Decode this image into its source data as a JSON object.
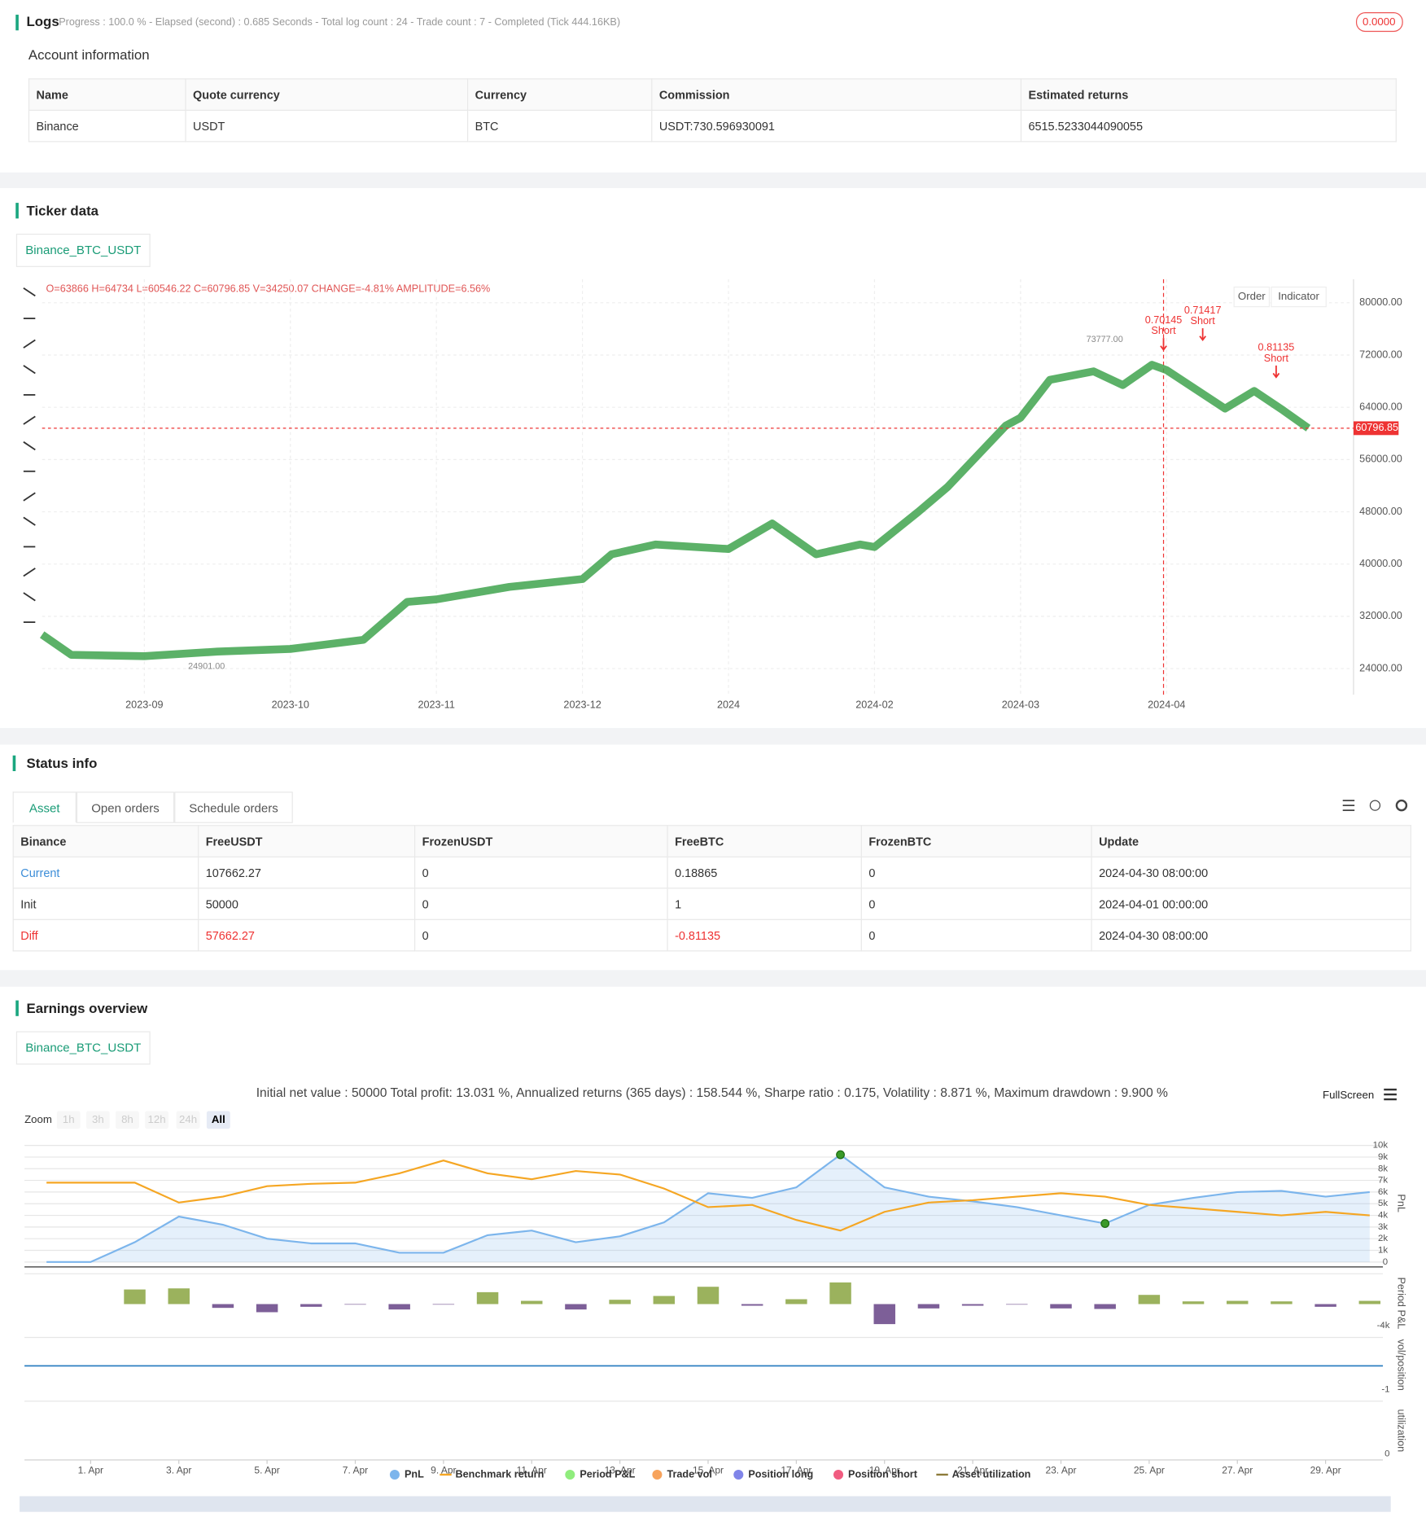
{
  "logs": {
    "title": "Logs",
    "summary": "Progress : 100.0 % - Elapsed (second) : 0.685  Seconds - Total log count : 24 - Trade count : 7 - Completed (Tick 444.16KB)",
    "badge": "0.0000"
  },
  "account": {
    "title": "Account information",
    "columns": [
      "Name",
      "Quote currency",
      "Currency",
      "Commission",
      "Estimated returns"
    ],
    "rows": [
      [
        "Binance",
        "USDT",
        "BTC",
        "USDT:730.596930091",
        "6515.5233044090055"
      ]
    ]
  },
  "ticker": {
    "title": "Ticker data",
    "tab": "Binance_BTC_USDT",
    "ohlc": "O=63866 H=64734 L=60546.22 C=60796.85 V=34250.07 CHANGE=-4.81% AMPLITUDE=6.56%",
    "buttons": [
      "Order",
      "Indicator"
    ]
  },
  "status": {
    "title": "Status info",
    "tabs": [
      "Asset",
      "Open orders",
      "Schedule orders"
    ],
    "columns": [
      "Binance",
      "FreeUSDT",
      "FrozenUSDT",
      "FreeBTC",
      "FrozenBTC",
      "Update"
    ],
    "rows": [
      [
        "Current",
        "107662.27",
        "0",
        "0.18865",
        "0",
        "2024-04-30 08:00:00"
      ],
      [
        "Init",
        "50000",
        "0",
        "1",
        "0",
        "2024-04-01 00:00:00"
      ],
      [
        "Diff",
        "57662.27",
        "0",
        "-0.81135",
        "0",
        "2024-04-30 08:00:00"
      ]
    ]
  },
  "earnings": {
    "title": "Earnings overview",
    "tab": "Binance_BTC_USDT",
    "summary": "Initial net value : 50000 Total profit: 13.031 %, Annualized returns (365 days) : 158.544 %, Sharpe ratio : 0.175, Volatility : 8.871 %, Maximum drawdown : 9.900 %",
    "fullscreen": "FullScreen",
    "zoom_label": "Zoom",
    "zoom_buttons": [
      "1h",
      "3h",
      "8h",
      "12h",
      "24h",
      "All"
    ],
    "panel_titles": [
      "PnL",
      "Period P&L",
      "vol/position",
      "utilization"
    ],
    "panel_ticks": [
      "-1",
      "0"
    ],
    "legend": [
      {
        "name": "PnL",
        "color": "#7cb5ec",
        "shape": "dot"
      },
      {
        "name": "Benchmark return",
        "color": "#f5a623",
        "shape": "line"
      },
      {
        "name": "Period P&L",
        "color": "#90ed7d",
        "shape": "dot"
      },
      {
        "name": "Trade vol",
        "color": "#f7a35c",
        "shape": "dot"
      },
      {
        "name": "Position long",
        "color": "#8085e9",
        "shape": "dot"
      },
      {
        "name": "Position short",
        "color": "#f15c80",
        "shape": "dot"
      },
      {
        "name": "Asset utilization",
        "color": "#8d7b3a",
        "shape": "line"
      }
    ]
  },
  "chart_data": [
    {
      "type": "line",
      "x": [
        -0.7,
        -0.5,
        0,
        0.5,
        1,
        1.5,
        1.8,
        2,
        2.5,
        3,
        3.2,
        3.5,
        4,
        4.3,
        4.6,
        4.9,
        5,
        5.3,
        5.5,
        5.9,
        6,
        6.2,
        6.5,
        6.7,
        6.9,
        7,
        7.4,
        7.6,
        7.8,
        7.97
      ],
      "series": [
        {
          "color": "#3fa34d",
          "values": [
            29200,
            26100,
            25900,
            26600,
            27000,
            28400,
            34200,
            34600,
            36500,
            37700,
            41500,
            43000,
            42300,
            46200,
            41500,
            43000,
            42600,
            48000,
            51800,
            61200,
            62400,
            68200,
            69500,
            67400,
            70500,
            69700,
            63800,
            66500,
            63500,
            60796.85
          ]
        }
      ],
      "xlim": [
        -0.7,
        8.28
      ],
      "ylim": [
        20000,
        83600
      ],
      "xticks": [
        {
          "value": 0,
          "label": "2023-09"
        },
        {
          "value": 1,
          "label": "2023-10"
        },
        {
          "value": 2,
          "label": "2023-11"
        },
        {
          "value": 3,
          "label": "2023-12"
        },
        {
          "value": 4,
          "label": "2024"
        },
        {
          "value": 5,
          "label": "2024-02"
        },
        {
          "value": 6,
          "label": "2024-03"
        },
        {
          "value": 7,
          "label": "2024-04"
        }
      ],
      "yticks": [
        {
          "value": 24000,
          "label": "24000.00"
        },
        {
          "value": 32000,
          "label": "32000.00"
        },
        {
          "value": 40000,
          "label": "40000.00"
        },
        {
          "value": 48000,
          "label": "48000.00"
        },
        {
          "value": 56000,
          "label": "56000.00"
        },
        {
          "value": 64000,
          "label": "64000.00"
        },
        {
          "value": 72000,
          "label": "72000.00"
        },
        {
          "value": 80000,
          "label": "80000.00"
        }
      ],
      "grid": true,
      "last_price": {
        "value": 60796.85,
        "label": "60796.85"
      },
      "max": {
        "x": 6.45,
        "value": 73777,
        "label": "73777.00"
      },
      "min": {
        "x": 0.3,
        "value": 24901,
        "label": "24901.00"
      },
      "trade_labels": [
        {
          "amount": "0.70145",
          "side": "Short"
        },
        {
          "amount": "0.71417",
          "side": "Short"
        },
        {
          "amount": "0.81135",
          "side": "Short"
        }
      ]
    },
    {
      "type": "line",
      "x": [
        0,
        1,
        2,
        3,
        4,
        5,
        6,
        7,
        8,
        9,
        10,
        11,
        12,
        13,
        14,
        15,
        16,
        17,
        18,
        19,
        20,
        21,
        22,
        23,
        24,
        25,
        26,
        27,
        28,
        29,
        30
      ],
      "series": [
        {
          "color": "#7cb5ec",
          "area": true,
          "values": [
            0,
            0,
            1700,
            3900,
            3200,
            2000,
            1600,
            1600,
            800,
            800,
            2300,
            2700,
            1700,
            2200,
            3400,
            5900,
            5500,
            6400,
            9200,
            6400,
            5600,
            5200,
            4700,
            4000,
            3300,
            4900,
            5500,
            6000,
            6100,
            5600,
            6000
          ]
        },
        {
          "color": "#f5a623",
          "values": [
            6800,
            6800,
            6800,
            5100,
            5600,
            6500,
            6700,
            6800,
            7600,
            8700,
            7600,
            7100,
            7800,
            7500,
            6300,
            4700,
            4900,
            3600,
            2700,
            4300,
            5100,
            5300,
            5600,
            5900,
            5600,
            4900,
            4600,
            4300,
            4000,
            4300,
            4000
          ]
        }
      ],
      "xlim": [
        -0.5,
        30.3
      ],
      "ylim": [
        -420,
        10500
      ],
      "xticks": [
        {
          "value": 1,
          "label": "1. Apr"
        },
        {
          "value": 3,
          "label": "3. Apr"
        },
        {
          "value": 5,
          "label": "5. Apr"
        },
        {
          "value": 7,
          "label": "7. Apr"
        },
        {
          "value": 9,
          "label": "9. Apr"
        },
        {
          "value": 11,
          "label": "11. Apr"
        },
        {
          "value": 13,
          "label": "13. Apr"
        },
        {
          "value": 15,
          "label": "15. Apr"
        },
        {
          "value": 17,
          "label": "17. Apr"
        },
        {
          "value": 19,
          "label": "19. Apr"
        },
        {
          "value": 21,
          "label": "21. Apr"
        },
        {
          "value": 23,
          "label": "23. Apr"
        },
        {
          "value": 25,
          "label": "25. Apr"
        },
        {
          "value": 27,
          "label": "27. Apr"
        },
        {
          "value": 29,
          "label": "29. Apr"
        }
      ],
      "yticks": [
        0,
        {
          "value": 1000,
          "label": "1k"
        },
        {
          "value": 2000,
          "label": "2k"
        },
        {
          "value": 3000,
          "label": "3k"
        },
        {
          "value": 4000,
          "label": "4k"
        },
        {
          "value": 5000,
          "label": "5k"
        },
        {
          "value": 6000,
          "label": "6k"
        },
        {
          "value": 7000,
          "label": "7k"
        },
        {
          "value": 8000,
          "label": "8k"
        },
        {
          "value": 9000,
          "label": "9k"
        },
        {
          "value": 10000,
          "label": "10k"
        }
      ],
      "grid": true
    },
    {
      "type": "bar",
      "x": [
        2,
        3,
        4,
        5,
        6,
        7,
        8,
        9,
        10,
        11,
        12,
        13,
        14,
        15,
        16,
        17,
        18,
        19,
        20,
        21,
        22,
        23,
        24,
        25,
        26,
        27,
        28,
        29,
        30
      ],
      "values": [
        2700,
        2900,
        -700,
        -1500,
        -500,
        -100,
        -1000,
        -100,
        2200,
        600,
        -1000,
        800,
        1500,
        3200,
        -300,
        900,
        4000,
        -3700,
        -800,
        -300,
        -100,
        -800,
        -900,
        1700,
        500,
        600,
        500,
        -500,
        600
      ],
      "color": "#9bb25d",
      "negative_color": "#7d5f98",
      "xlim": [
        -0.5,
        30.3
      ],
      "ylim": [
        -4900,
        5600
      ],
      "yticks": [
        {
          "value": -4000,
          "label": "-4k"
        }
      ]
    }
  ]
}
